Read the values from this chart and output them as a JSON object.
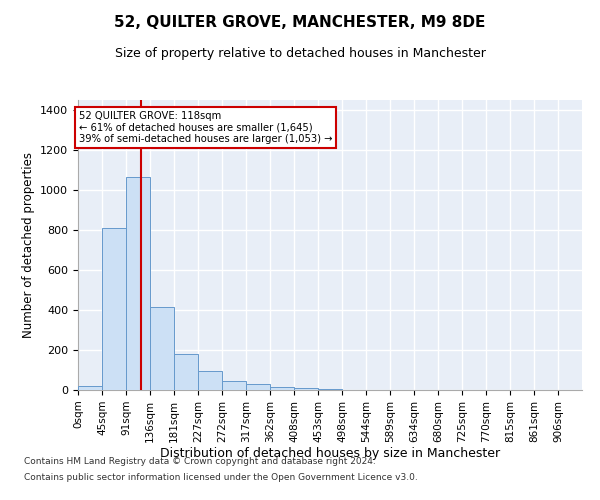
{
  "title": "52, QUILTER GROVE, MANCHESTER, M9 8DE",
  "subtitle": "Size of property relative to detached houses in Manchester",
  "xlabel": "Distribution of detached houses by size in Manchester",
  "ylabel": "Number of detached properties",
  "footer_line1": "Contains HM Land Registry data © Crown copyright and database right 2024.",
  "footer_line2": "Contains public sector information licensed under the Open Government Licence v3.0.",
  "bin_labels": [
    "0sqm",
    "45sqm",
    "91sqm",
    "136sqm",
    "181sqm",
    "227sqm",
    "272sqm",
    "317sqm",
    "362sqm",
    "408sqm",
    "453sqm",
    "498sqm",
    "544sqm",
    "589sqm",
    "634sqm",
    "680sqm",
    "725sqm",
    "770sqm",
    "815sqm",
    "861sqm",
    "906sqm"
  ],
  "bar_values": [
    20,
    810,
    1065,
    415,
    180,
    97,
    47,
    30,
    15,
    10,
    5,
    0,
    0,
    0,
    0,
    0,
    0,
    0,
    0,
    0,
    0
  ],
  "bar_color": "#cce0f5",
  "bar_edge_color": "#6699cc",
  "background_color": "#e8eef7",
  "grid_color": "#ffffff",
  "red_line_x": 118,
  "bin_width": 45,
  "annotation_text_line1": "52 QUILTER GROVE: 118sqm",
  "annotation_text_line2": "← 61% of detached houses are smaller (1,645)",
  "annotation_text_line3": "39% of semi-detached houses are larger (1,053) →",
  "annotation_box_color": "#ffffff",
  "annotation_box_edge_color": "#cc0000",
  "red_line_color": "#cc0000",
  "ylim": [
    0,
    1450
  ],
  "yticks": [
    0,
    200,
    400,
    600,
    800,
    1000,
    1200,
    1400
  ],
  "fig_bg": "#ffffff"
}
